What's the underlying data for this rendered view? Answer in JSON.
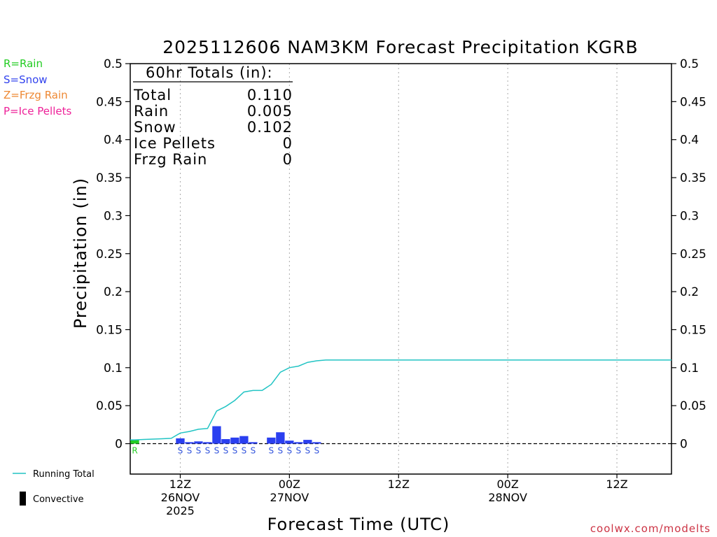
{
  "chart_data": {
    "type": "bar+line",
    "title": "2025112606 NAM3KM Forecast Precipitation KGRB",
    "ylabel": "Precipitation (in)",
    "xlabel": "Forecast Time (UTC)",
    "ylim": [
      -0.04,
      0.5
    ],
    "yticks": [
      0,
      0.05,
      0.1,
      0.15,
      0.2,
      0.25,
      0.3,
      0.35,
      0.4,
      0.45,
      0.5
    ],
    "ytick_labels": [
      "0",
      "0.05",
      "0.1",
      "0.15",
      "0.2",
      "0.25",
      "0.3",
      "0.35",
      "0.4",
      "0.45",
      "0.5"
    ],
    "xlim_hours": [
      6.5,
      66
    ],
    "xticks": [
      {
        "hour": 12,
        "line1": "12Z",
        "line2": "26NOV",
        "line3": "2025"
      },
      {
        "hour": 24,
        "line1": "00Z",
        "line2": "27NOV",
        "line3": ""
      },
      {
        "hour": 36,
        "line1": "12Z",
        "line2": "",
        "line3": ""
      },
      {
        "hour": 48,
        "line1": "00Z",
        "line2": "28NOV",
        "line3": ""
      },
      {
        "hour": 60,
        "line1": "12Z",
        "line2": "",
        "line3": ""
      }
    ],
    "bars": [
      {
        "hour": 7,
        "value": 0.005,
        "type": "R"
      },
      {
        "hour": 12,
        "value": 0.007,
        "type": "S"
      },
      {
        "hour": 13,
        "value": 0.002,
        "type": "S"
      },
      {
        "hour": 14,
        "value": 0.003,
        "type": "S"
      },
      {
        "hour": 15,
        "value": 0.002,
        "type": "S"
      },
      {
        "hour": 16,
        "value": 0.023,
        "type": "S"
      },
      {
        "hour": 17,
        "value": 0.006,
        "type": "S"
      },
      {
        "hour": 18,
        "value": 0.008,
        "type": "S"
      },
      {
        "hour": 19,
        "value": 0.01,
        "type": "S"
      },
      {
        "hour": 20,
        "value": 0.002,
        "type": "S"
      },
      {
        "hour": 22,
        "value": 0.008,
        "type": "S"
      },
      {
        "hour": 23,
        "value": 0.015,
        "type": "S"
      },
      {
        "hour": 24,
        "value": 0.004,
        "type": "S"
      },
      {
        "hour": 25,
        "value": 0.002,
        "type": "S"
      },
      {
        "hour": 26,
        "value": 0.005,
        "type": "S"
      },
      {
        "hour": 27,
        "value": 0.002,
        "type": "S"
      }
    ],
    "running_total": {
      "name": "Running Total",
      "x": [
        6.5,
        7,
        8,
        9,
        10,
        11,
        12,
        13,
        14,
        15,
        16,
        17,
        18,
        19,
        20,
        21,
        22,
        23,
        24,
        25,
        26,
        27,
        28,
        30,
        36,
        42,
        48,
        51,
        54,
        60,
        66
      ],
      "y": [
        0.005,
        0.005,
        0.0055,
        0.006,
        0.0065,
        0.007,
        0.014,
        0.016,
        0.019,
        0.02,
        0.043,
        0.049,
        0.057,
        0.068,
        0.07,
        0.07,
        0.078,
        0.094,
        0.1,
        0.102,
        0.107,
        0.109,
        0.11,
        0.11,
        0.11,
        0.11,
        0.11,
        0.11,
        0.11,
        0.11,
        0.11
      ]
    },
    "legend": {
      "types": [
        {
          "label": "R=Rain",
          "color": "#22cc22"
        },
        {
          "label": "S=Snow",
          "color": "#3344ee"
        },
        {
          "label": "Z=Frzg Rain",
          "color": "#ee8833"
        },
        {
          "label": "P=Ice Pellets",
          "color": "#ee2299"
        }
      ],
      "running_total_label": "Running Total",
      "convective_label": "Convective"
    },
    "totals": {
      "header": "60hr Totals (in):",
      "rows": [
        {
          "label": "Total",
          "value": "0.110"
        },
        {
          "label": "Rain",
          "value": "0.005"
        },
        {
          "label": "Snow",
          "value": "0.102"
        },
        {
          "label": "Ice Pellets",
          "value": "0"
        },
        {
          "label": "Frzg Rain",
          "value": "0"
        }
      ]
    },
    "credit": "coolwx.com/modelts",
    "colors": {
      "rain": "#22cc22",
      "snow": "#2a3ff0",
      "snow_label": "#3355dd",
      "line": "#22c4c4",
      "grid": "#aaaaaa",
      "credit": "#cc3344"
    }
  }
}
